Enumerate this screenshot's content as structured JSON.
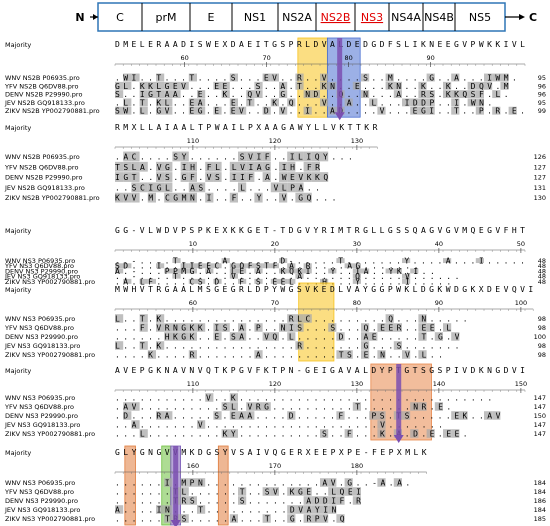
{
  "genome": {
    "start": "N",
    "end": "C",
    "segments": [
      {
        "label": "C",
        "color": "#000000"
      },
      {
        "label": "prM",
        "color": "#000000"
      },
      {
        "label": "E",
        "color": "#000000"
      },
      {
        "label": "NS1",
        "color": "#000000"
      },
      {
        "label": "NS2A",
        "color": "#000000"
      },
      {
        "label": "NS2B",
        "color": "#e00000"
      },
      {
        "label": "NS3",
        "color": "#e00000"
      },
      {
        "label": "NS4A",
        "color": "#000000"
      },
      {
        "label": "NS4B",
        "color": "#000000"
      },
      {
        "label": "NS5",
        "color": "#000000"
      }
    ]
  },
  "blocks": [
    {
      "label": "Majority",
      "majority": "DMELERAADISWEXDAEITGSPRLDVALDEDGDFSLIKNEEGVPWKKIVL",
      "ruler": [
        60,
        70,
        80,
        90
      ],
      "rows": [
        {
          "name": "WNV NS2B P06935.pro",
          "sequence": ".WI..T...T....S...EV..R..V....S..M....G..A...IWM.",
          "end": 95
        },
        {
          "name": "YFV NS2B Q6DV88.pro",
          "sequence": "GL.KKLGEV...EE...S..A.T..KN..E...KN..K..K..DQV.M",
          "end": 96
        },
        {
          "name": "DENV NS2B P29990.pro",
          "sequence": "S..IGTAA..E..K..QV..G..ND..Q..N...A..RS.KKQSF.L.",
          "end": 96
        },
        {
          "name": "JEV NS2B GQ918133.pro",
          "sequence": ".L.T.KL..EA...E.T..K.Q...V..A..L...IDDP..I.WN.",
          "end": 95
        },
        {
          "name": "ZIKV NS2B YP002790881.pro",
          "sequence": "SW.L.GV..EG.E.EV..D.V..I..AD....V...EGI..T..P.R.E.",
          "end": 99
        }
      ]
    },
    {
      "label": "Majority",
      "majority": "RMXLLAIAALTPWAILPXAAGAWYLLVKTTKR",
      "ruler": [
        110,
        120,
        130
      ],
      "rows": [
        {
          "name": "WNV NS2B P06935.pro",
          "sequence": ".AC....SY......SVIF..ILIQY...",
          "end": 126
        },
        {
          "name": "YFV NS2B Q6DV88.pro",
          "sequence": "TSLA.VG.IH.FL.LVIAG.IH.FR",
          "end": 127
        },
        {
          "name": "DENV NS2B P29990.pro",
          "sequence": "IGT..VS.GF.VS.IIF.A.WEVKKQ",
          "end": 127
        },
        {
          "name": "JEV NS2B GQ918133.pro",
          "sequence": "..SCIGL..AS....L...VLPA..",
          "end": 131
        },
        {
          "name": "ZIKV NS2B YP002790881.pro",
          "sequence": "KVV.M.CGMN.I..F..Y..V.GQ...",
          "end": 130
        }
      ]
    },
    {
      "label": "Majority",
      "majority": "GG-VLWDVPSPKEXKKGET-TDGVYRIMTRGLLGSSQAGVGVMQEGVFHT",
      "ruler": [
        10,
        20,
        30,
        40,
        50
      ],
      "rows": [
        {
          "name": "WNV NS3 P06935.pro",
          "sequence": "..-....T.....A......D-.....T.......Y....A...I.....",
          "end": 48
        },
        {
          "name": "YFV NS3 Q6DV88.pro",
          "sequence": "SD...I..IIEEC.GQFSTF.A.R....AG.......",
          "end": 48
        },
        {
          "name": "DENV NS3 P29990.pro",
          "sequence": "A.-...PPMG.A..LE.A..KQKI..Y..IA..YK.I..",
          "end": 48
        },
        {
          "name": "JEV NS3 GQ918133.pro",
          "sequence": "..-....T......V.......A......Q.....V......",
          "end": 48
        },
        {
          "name": "ZIKV NS3 YP002790881.pro",
          "sequence": ".A.LF....CS.D..F.S.EEL...H...Y.....I.....",
          "end": 48
        }
      ]
    },
    {
      "label": "Majority",
      "majority": "MWHVTRGAALMSGEGRLDPYWGSVKEDLVAYGGPWKLDGKWDGKXDEVQVI",
      "ruler": [
        60,
        70,
        80,
        90,
        100
      ],
      "rows": [
        {
          "name": "WNV NS3 P06935.pro",
          "sequence": "L..T.K...............RLC.........Q...N.....",
          "end": 98
        },
        {
          "name": "YFV NS3 Q6DV88.pro",
          "sequence": "...F.VRNGKK.IS.A.P..NIS...S...Q.EER..EE.L",
          "end": 98
        },
        {
          "name": "DENV NS3 P29990.pro",
          "sequence": "......HKGK..E.SA..VQ.L.....D..AE.....T.G.V",
          "end": 100
        },
        {
          "name": "JEV NS3 GQ918133.pro",
          "sequence": "L..T.K................R.......G...S.......",
          "end": 98
        },
        {
          "name": "ZIKV NS3 YP002790881.pro",
          "sequence": "....K....R.......A.........TS.E.N..V.L..",
          "end": 98
        }
      ]
    },
    {
      "label": "Majority",
      "majority": "AVEPGKNAVNVQTKPGVFKTPN-GEIGAVALDYPTGTSGSPIVDKNGDVI",
      "ruler": [
        110,
        120,
        130,
        140,
        150
      ],
      "rows": [
        {
          "name": "WNV NS3 P06935.pro",
          "sequence": "...........V..K...............................",
          "end": 147
        },
        {
          "name": "YFV NS3 Q6DV88.pro",
          "sequence": ".AV..........SL.VRG..........T......NR.E.",
          "end": 147
        },
        {
          "name": "DENV NS3 P29990.pro",
          "sequence": ".D...RA.....S.EAA....D.....F...PS.TS.....EK..AV",
          "end": 150
        },
        {
          "name": "JEV NS3 GQ918133.pro",
          "sequence": "..A.......V.....................V.......",
          "end": 147
        },
        {
          "name": "ZIKV NS3 YP002790881.pro",
          "sequence": "...L.........KY..........S..F...K.A.D.E.EE.",
          "end": 147
        }
      ]
    },
    {
      "label": "Majority",
      "majority": "GLYGNGVVMKDGSYVSAIVQGERXEEPXPE-FEPXMLK",
      "ruler": [
        160,
        170,
        180
      ],
      "rows": [
        {
          "name": "WNV NS3 P06935.pro",
          "sequence": "......I.MPN..............AV.G..-A.A.",
          "end": 184
        },
        {
          "name": "YFV NS3 Q6DV88.pro",
          "sequence": ".......TL......T..SV.KGE..LQEI",
          "end": 184
        },
        {
          "name": "DENV NS3 P29990.pro",
          "sequence": ".......TRS.....S.......ADDIF.R",
          "end": 186
        },
        {
          "name": "JEV NS3 GQ918133.pro",
          "sequence": "A....IN...T..........DVAYIN",
          "end": 184
        },
        {
          "name": "ZIKV NS3 YP002790881.pro",
          "sequence": "......TRS.....A...T..G.RPV.Q",
          "end": 185
        }
      ]
    }
  ]
}
